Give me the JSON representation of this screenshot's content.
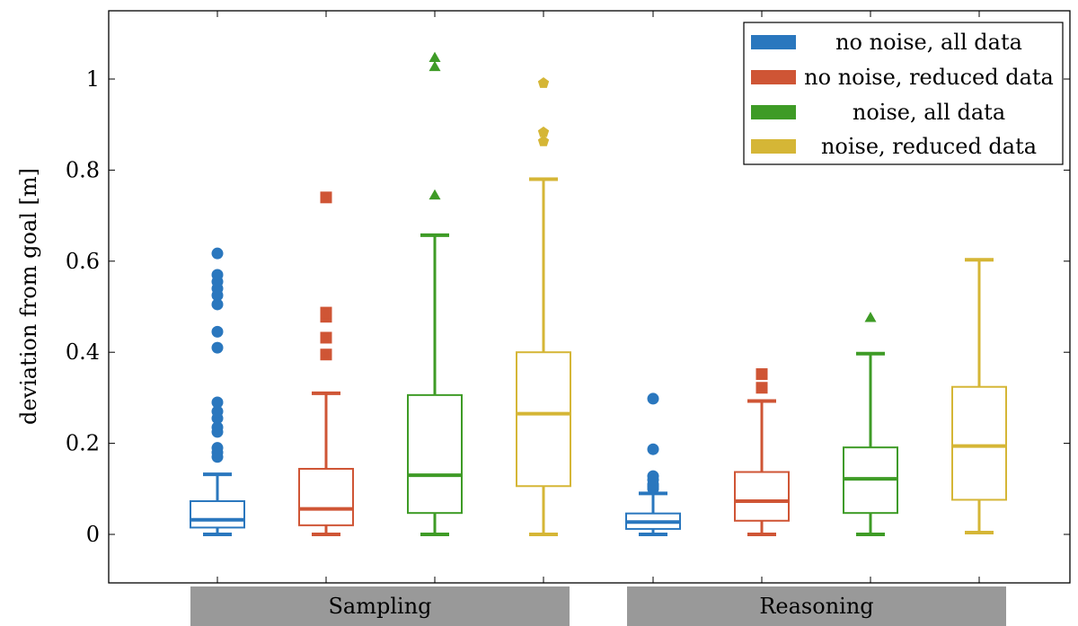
{
  "chart_data": {
    "type": "box",
    "ylabel": "deviation from goal [m]",
    "ylim": [
      -0.1,
      1.15
    ],
    "yticks": [
      0,
      0.2,
      0.4,
      0.6,
      0.8,
      1
    ],
    "ytick_labels": [
      "0",
      "0.2",
      "0.4",
      "0.6",
      "0.8",
      "1"
    ],
    "groups": [
      "Sampling",
      "Reasoning"
    ],
    "legend_position": "top-right",
    "series": [
      {
        "name": "no noise, all data",
        "color": "#2a77be",
        "marker": "circle",
        "boxes": [
          {
            "group": "Sampling",
            "min": 0.0,
            "q1": 0.015,
            "median": 0.032,
            "q3": 0.073,
            "max": 0.132,
            "outliers": [
              0.17,
              0.18,
              0.19,
              0.225,
              0.235,
              0.255,
              0.27,
              0.29,
              0.41,
              0.445,
              0.505,
              0.525,
              0.54,
              0.555,
              0.57,
              0.617
            ]
          },
          {
            "group": "Reasoning",
            "min": 0.0,
            "q1": 0.012,
            "median": 0.027,
            "q3": 0.046,
            "max": 0.09,
            "outliers": [
              0.1,
              0.105,
              0.11,
              0.12,
              0.128,
              0.187,
              0.298
            ]
          }
        ]
      },
      {
        "name": "no noise, reduced data",
        "color": "#cf5535",
        "marker": "square",
        "boxes": [
          {
            "group": "Sampling",
            "min": 0.0,
            "q1": 0.02,
            "median": 0.056,
            "q3": 0.144,
            "max": 0.31,
            "outliers": [
              0.395,
              0.432,
              0.478,
              0.487,
              0.74
            ]
          },
          {
            "group": "Reasoning",
            "min": 0.0,
            "q1": 0.03,
            "median": 0.073,
            "q3": 0.137,
            "max": 0.293,
            "outliers": [
              0.322,
              0.352
            ]
          }
        ]
      },
      {
        "name": "noise, all data",
        "color": "#3e9b26",
        "marker": "triangle",
        "boxes": [
          {
            "group": "Sampling",
            "min": 0.0,
            "q1": 0.047,
            "median": 0.13,
            "q3": 0.306,
            "max": 0.657,
            "outliers": [
              0.745,
              1.027,
              1.047
            ]
          },
          {
            "group": "Reasoning",
            "min": 0.0,
            "q1": 0.047,
            "median": 0.122,
            "q3": 0.191,
            "max": 0.397,
            "outliers": [
              0.476
            ]
          }
        ]
      },
      {
        "name": "noise, reduced data",
        "color": "#d5b636",
        "marker": "pentagon",
        "boxes": [
          {
            "group": "Sampling",
            "min": 0.0,
            "q1": 0.106,
            "median": 0.265,
            "q3": 0.4,
            "max": 0.78,
            "outliers": [
              0.863,
              0.883,
              0.991
            ]
          },
          {
            "group": "Reasoning",
            "min": 0.004,
            "q1": 0.076,
            "median": 0.194,
            "q3": 0.324,
            "max": 0.603,
            "outliers": []
          }
        ]
      }
    ]
  }
}
